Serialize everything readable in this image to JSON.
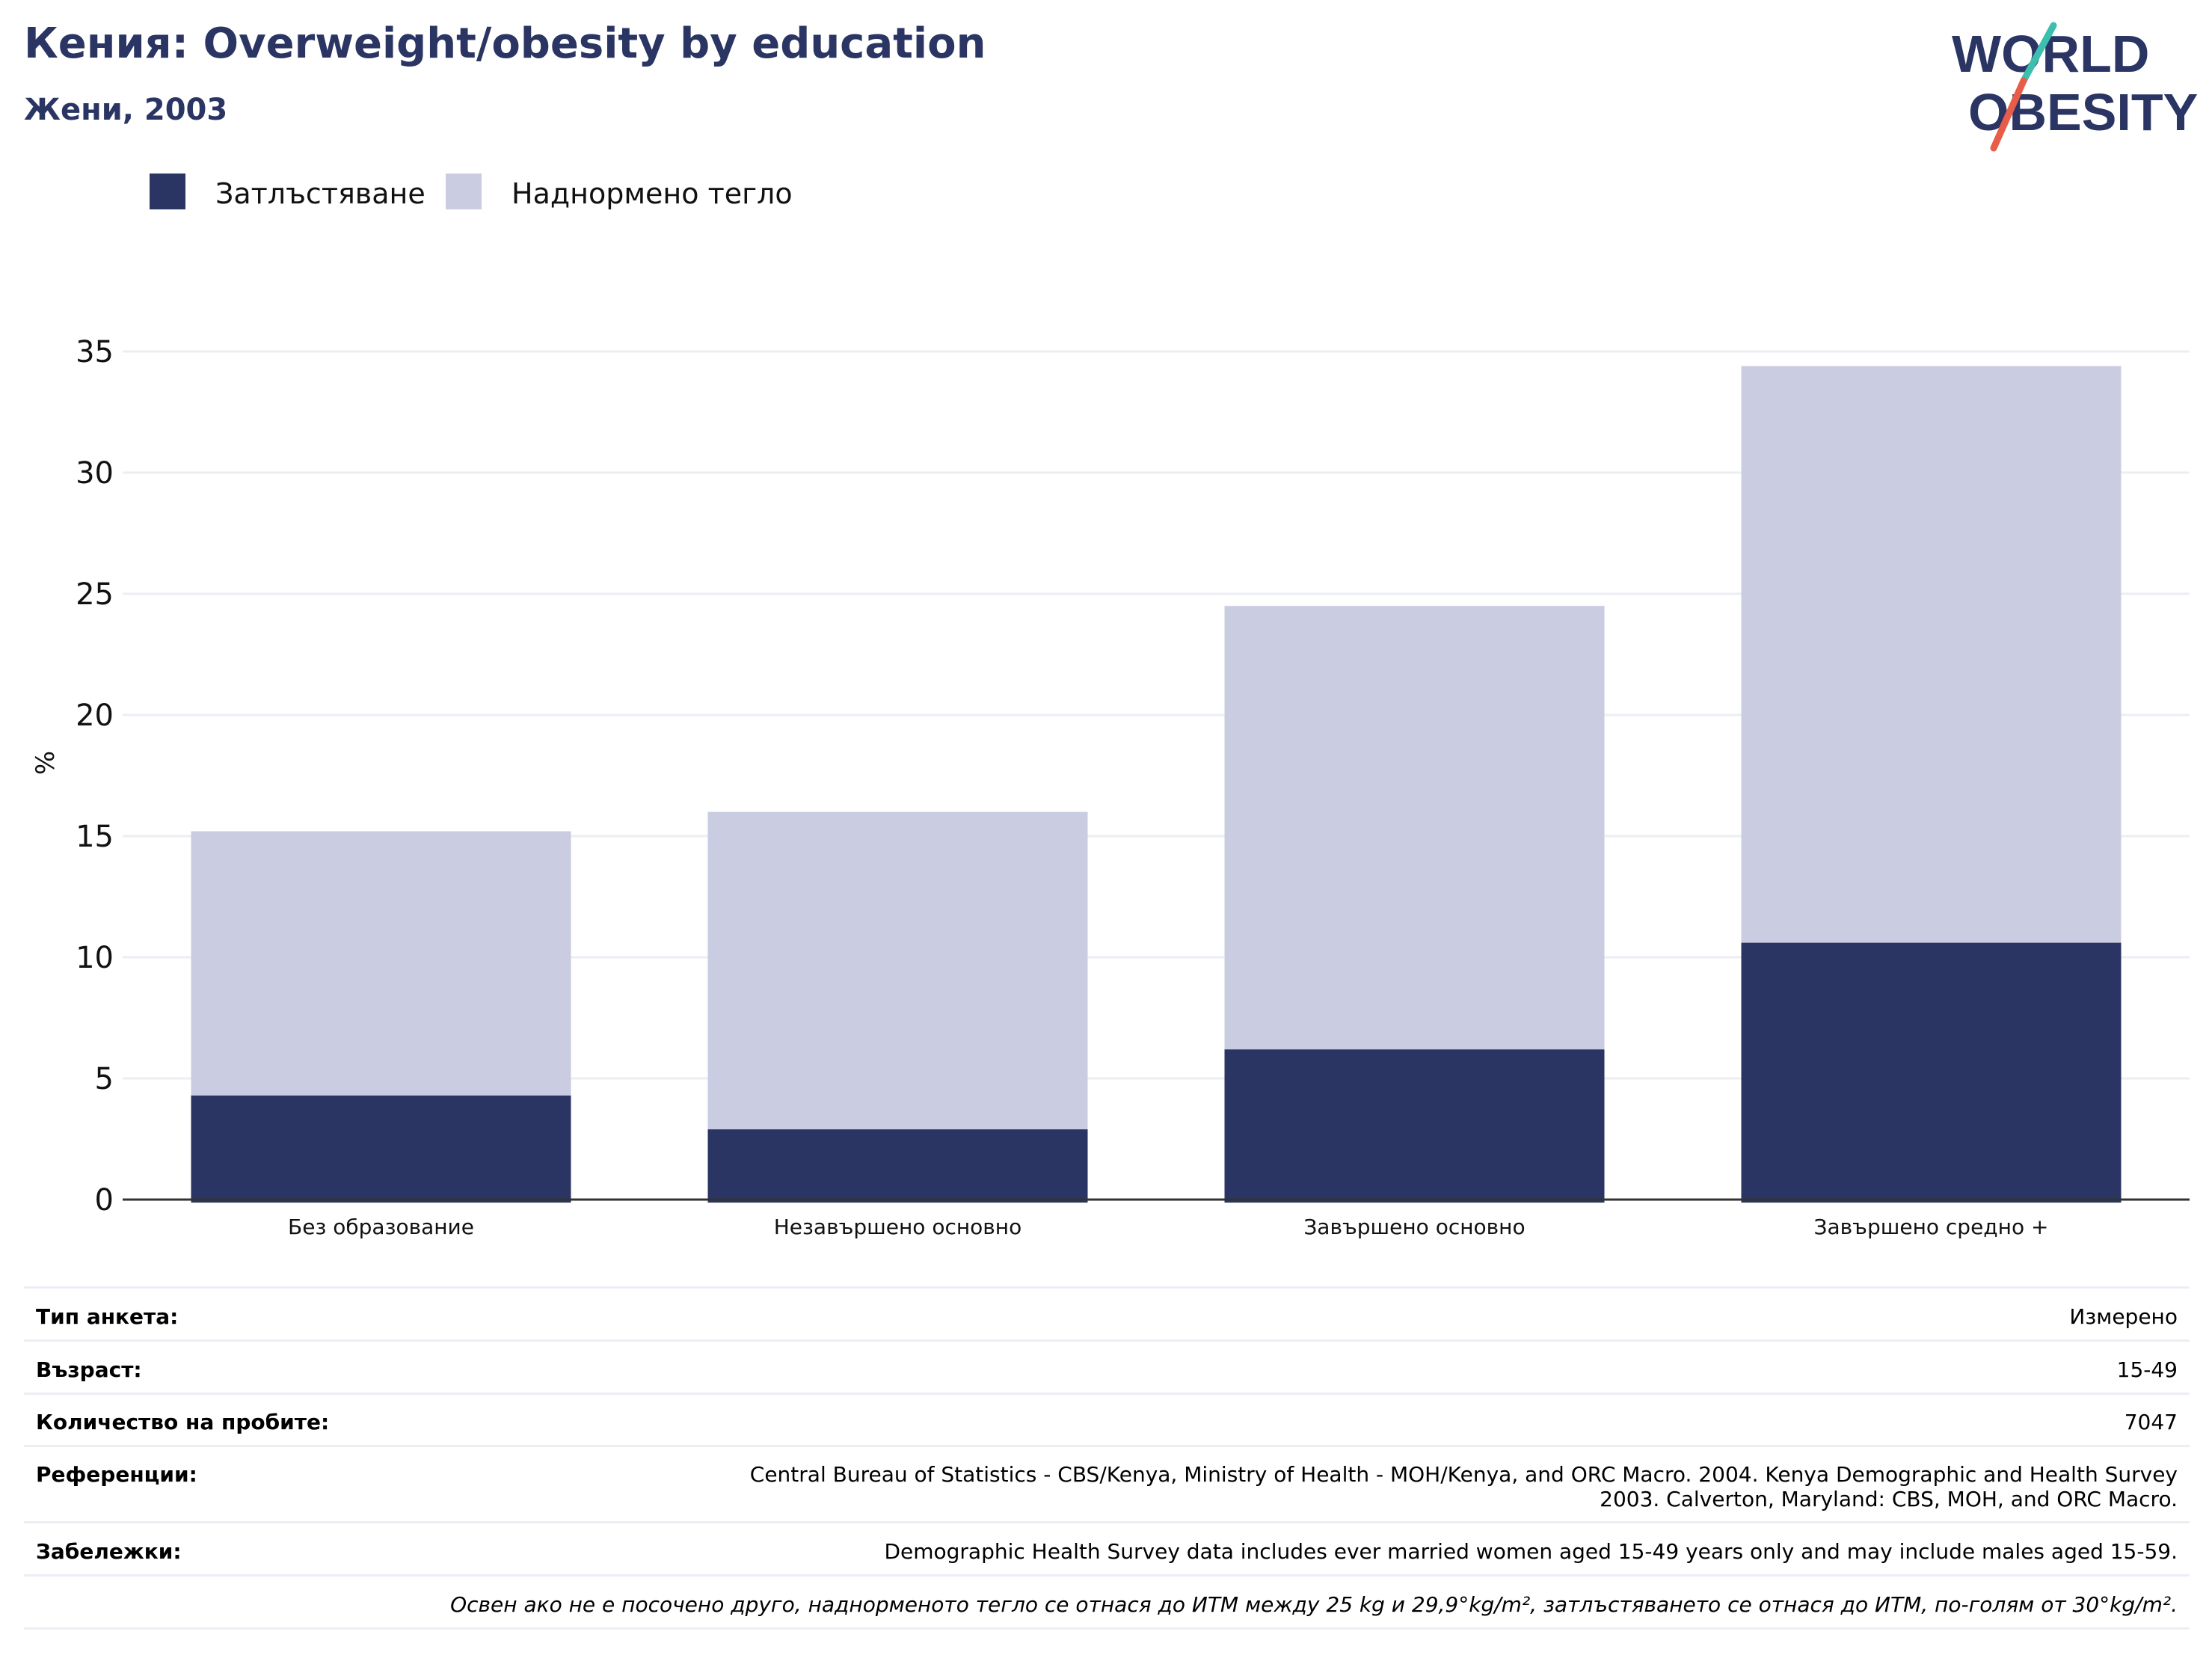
{
  "header": {
    "title": "Кения: Overweight/obesity by education",
    "subtitle": "Жени, 2003"
  },
  "logo": {
    "line1": "WORLD",
    "line2": "OBESITY"
  },
  "colors": {
    "obesity": "#2a3563",
    "overweight": "#cacce2",
    "grid": "#eceef4",
    "axis": "#333333",
    "logo_teal": "#3cbfae",
    "logo_red": "#e85c4a"
  },
  "chart_data": {
    "type": "bar",
    "stacked": true,
    "categories": [
      "Без образование",
      "Незавършено основно",
      "Завършено основно",
      "Завършено средно +"
    ],
    "series": [
      {
        "name": "Затлъстяване",
        "values": [
          4.3,
          2.9,
          6.2,
          10.6
        ]
      },
      {
        "name": "Наднормено тегло",
        "values": [
          10.9,
          13.1,
          18.3,
          23.8
        ]
      }
    ],
    "ylabel": "%",
    "ylim": [
      0,
      35
    ],
    "yticks": [
      0,
      5,
      10,
      15,
      20,
      25,
      30,
      35
    ],
    "grid": true,
    "legend": "top-left"
  },
  "info": {
    "survey_type_label": "Тип анкета:",
    "survey_type_value": "Измерено",
    "age_label": "Възраст:",
    "age_value": "15-49",
    "sample_label": "Количество на пробите:",
    "sample_value": "7047",
    "references_label": "Референции:",
    "references_line1": "Central Bureau of Statistics - CBS/Kenya, Ministry of Health - MOH/Kenya, and ORC Macro. 2004. Kenya Demographic and Health Survey",
    "references_line2": "2003. Calverton, Maryland: CBS, MOH, and ORC Macro.",
    "notes_label": "Забележки:",
    "notes_value": "Demographic Health Survey data includes ever married women aged 15-49 years only and may include males aged 15-59.",
    "footnote": "Освен ако не е посочено друго, наднорменото тегло се отнася до ИТМ между 25 kg и 29,9°kg/m², затлъстяването се отнася до ИТМ, по-голям от 30°kg/m²."
  }
}
